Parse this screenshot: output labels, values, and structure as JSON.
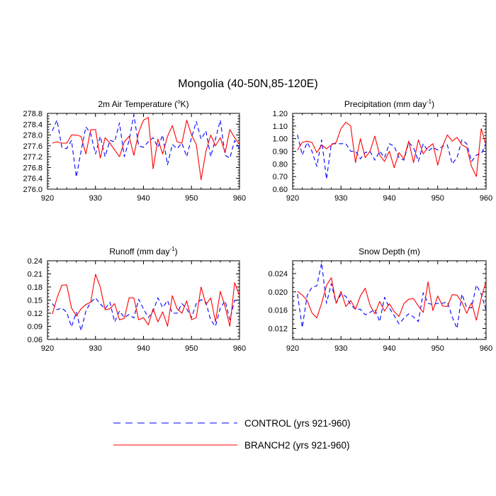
{
  "figure": {
    "title": "Mongolia (40-50N,85-120E)",
    "legend": [
      {
        "label": "CONTROL (yrs 921-960)",
        "color": "#0000ff",
        "dash": "dashed"
      },
      {
        "label": "BRANCH2 (yrs 921-960)",
        "color": "#ff0000",
        "dash": "solid"
      }
    ]
  },
  "chart_data": [
    {
      "type": "line",
      "title": "2m Air Temperature (°K)",
      "title_main": "2m Air Temperature (",
      "title_sup": "o",
      "title_tail": "K)",
      "xlim": [
        920,
        960
      ],
      "ylim": [
        276.0,
        278.8
      ],
      "xticks": [
        920,
        930,
        940,
        950,
        960
      ],
      "xtick_labels": [
        "920",
        "930",
        "940",
        "950",
        "960"
      ],
      "yticks": [
        276.0,
        276.4,
        276.8,
        277.2,
        277.6,
        278.0,
        278.4,
        278.8
      ],
      "ytick_labels": [
        "276.0",
        "276.4",
        "276.8",
        "277.2",
        "277.6",
        "278.0",
        "278.4",
        "278.8"
      ],
      "x": [
        921,
        922,
        923,
        924,
        925,
        926,
        927,
        928,
        929,
        930,
        931,
        932,
        933,
        934,
        935,
        936,
        937,
        938,
        939,
        940,
        941,
        942,
        943,
        944,
        945,
        946,
        947,
        948,
        949,
        950,
        951,
        952,
        953,
        954,
        955,
        956,
        957,
        958,
        959,
        960
      ],
      "series": [
        {
          "name": "CONTROL",
          "values": [
            278.15,
            278.55,
            277.55,
            277.5,
            277.8,
            276.45,
            277.4,
            278.3,
            278.05,
            277.3,
            277.95,
            277.2,
            277.8,
            277.75,
            278.45,
            277.2,
            277.8,
            278.75,
            277.6,
            277.55,
            277.75,
            277.9,
            277.55,
            278.0,
            276.9,
            277.65,
            277.5,
            277.7,
            277.2,
            277.9,
            278.5,
            277.85,
            278.15,
            277.2,
            277.85,
            278.55,
            277.25,
            277.15,
            277.8,
            277.5
          ]
        },
        {
          "name": "BRANCH2",
          "values": [
            277.7,
            277.75,
            277.7,
            277.7,
            278.0,
            278.0,
            277.95,
            277.3,
            278.2,
            278.2,
            277.15,
            277.9,
            277.7,
            277.45,
            277.2,
            277.75,
            277.95,
            277.25,
            278.1,
            278.55,
            278.65,
            276.75,
            277.85,
            277.3,
            277.95,
            278.35,
            277.75,
            277.7,
            278.55,
            278.0,
            277.65,
            276.35,
            277.4,
            278.0,
            277.6,
            277.9,
            277.35,
            278.2,
            277.9,
            277.65
          ]
        }
      ]
    },
    {
      "type": "line",
      "title": "Precipitation (mm day-1)",
      "title_main": "Precipitation (mm day",
      "title_sup": "-1",
      "title_tail": ")",
      "xlim": [
        920,
        960
      ],
      "ylim": [
        0.6,
        1.2
      ],
      "xticks": [
        920,
        930,
        940,
        950,
        960
      ],
      "xtick_labels": [
        "920",
        "930",
        "940",
        "950",
        "960"
      ],
      "yticks": [
        0.6,
        0.7,
        0.8,
        0.9,
        1.0,
        1.1,
        1.2
      ],
      "ytick_labels": [
        "0.60",
        "0.70",
        "0.80",
        "0.90",
        "1.00",
        "1.10",
        "1.20"
      ],
      "x": [
        921,
        922,
        923,
        924,
        925,
        926,
        927,
        928,
        929,
        930,
        931,
        932,
        933,
        934,
        935,
        936,
        937,
        938,
        939,
        940,
        941,
        942,
        943,
        944,
        945,
        946,
        947,
        948,
        949,
        950,
        951,
        952,
        953,
        954,
        955,
        956,
        957,
        958,
        959,
        960
      ],
      "series": [
        {
          "name": "CONTROL",
          "values": [
            1.03,
            0.87,
            0.97,
            0.9,
            0.78,
            0.99,
            0.68,
            0.96,
            0.96,
            0.96,
            0.96,
            0.9,
            0.9,
            0.84,
            0.89,
            0.9,
            0.83,
            0.9,
            0.85,
            0.96,
            0.94,
            0.85,
            0.83,
            0.97,
            0.93,
            0.82,
            0.96,
            0.9,
            0.93,
            0.91,
            0.94,
            0.95,
            0.8,
            0.85,
            0.99,
            0.96,
            0.82,
            0.87,
            0.88,
            0.96
          ]
        },
        {
          "name": "BRANCH2",
          "values": [
            0.91,
            0.97,
            0.98,
            0.97,
            0.89,
            0.95,
            0.92,
            0.95,
            0.97,
            1.08,
            1.13,
            1.1,
            0.81,
            1.0,
            0.85,
            0.9,
            1.02,
            0.87,
            0.82,
            0.9,
            0.77,
            0.89,
            0.84,
            0.98,
            0.81,
            0.99,
            0.88,
            0.93,
            0.96,
            0.79,
            0.94,
            1.03,
            0.98,
            1.01,
            0.95,
            0.93,
            0.78,
            0.7,
            1.08,
            0.95
          ]
        }
      ]
    },
    {
      "type": "line",
      "title": "Runoff (mm day-1)",
      "title_main": "Runoff (mm day",
      "title_sup": "-1",
      "title_tail": ")",
      "xlim": [
        920,
        960
      ],
      "ylim": [
        0.06,
        0.24
      ],
      "xticks": [
        920,
        930,
        940,
        950,
        960
      ],
      "xtick_labels": [
        "920",
        "930",
        "940",
        "950",
        "960"
      ],
      "yticks": [
        0.06,
        0.09,
        0.12,
        0.15,
        0.18,
        0.21,
        0.24
      ],
      "ytick_labels": [
        "0.06",
        "0.09",
        "0.12",
        "0.15",
        "0.18",
        "0.21",
        "0.24"
      ],
      "x": [
        921,
        922,
        923,
        924,
        925,
        926,
        927,
        928,
        929,
        930,
        931,
        932,
        933,
        934,
        935,
        936,
        937,
        938,
        939,
        940,
        941,
        942,
        943,
        944,
        945,
        946,
        947,
        948,
        949,
        950,
        951,
        952,
        953,
        954,
        955,
        956,
        957,
        958,
        959,
        960
      ],
      "series": [
        {
          "name": "CONTROL",
          "values": [
            0.142,
            0.128,
            0.132,
            0.122,
            0.089,
            0.122,
            0.08,
            0.125,
            0.145,
            0.155,
            0.141,
            0.13,
            0.145,
            0.1,
            0.125,
            0.11,
            0.117,
            0.109,
            0.152,
            0.13,
            0.11,
            0.125,
            0.155,
            0.133,
            0.149,
            0.12,
            0.12,
            0.142,
            0.13,
            0.11,
            0.142,
            0.151,
            0.145,
            0.104,
            0.09,
            0.132,
            0.148,
            0.105,
            0.15,
            0.145
          ]
        },
        {
          "name": "BRANCH2",
          "values": [
            0.118,
            0.155,
            0.184,
            0.185,
            0.132,
            0.114,
            0.13,
            0.14,
            0.145,
            0.209,
            0.18,
            0.128,
            0.13,
            0.142,
            0.105,
            0.108,
            0.155,
            0.155,
            0.105,
            0.11,
            0.093,
            0.13,
            0.1,
            0.123,
            0.09,
            0.16,
            0.13,
            0.12,
            0.148,
            0.105,
            0.11,
            0.18,
            0.14,
            0.155,
            0.1,
            0.17,
            0.135,
            0.09,
            0.19,
            0.16
          ]
        }
      ]
    },
    {
      "type": "line",
      "title": "Snow Depth (m)",
      "title_main": "Snow Depth (m)",
      "title_sup": "",
      "title_tail": "",
      "xlim": [
        920,
        960
      ],
      "ylim": [
        0.0096,
        0.0268
      ],
      "xticks": [
        920,
        930,
        940,
        950,
        960
      ],
      "xtick_labels": [
        "920",
        "930",
        "940",
        "950",
        "960"
      ],
      "yticks": [
        0.012,
        0.016,
        0.02,
        0.024
      ],
      "ytick_labels": [
        "0.012",
        "0.016",
        "0.020",
        "0.024"
      ],
      "x": [
        921,
        922,
        923,
        924,
        925,
        926,
        927,
        928,
        929,
        930,
        931,
        932,
        933,
        934,
        935,
        936,
        937,
        938,
        939,
        940,
        941,
        942,
        943,
        944,
        945,
        946,
        947,
        948,
        949,
        950,
        951,
        952,
        953,
        954,
        955,
        956,
        957,
        958,
        959,
        960
      ],
      "series": [
        {
          "name": "CONTROL",
          "values": [
            0.0195,
            0.0122,
            0.0192,
            0.021,
            0.0213,
            0.0263,
            0.0175,
            0.0218,
            0.0175,
            0.0195,
            0.019,
            0.0172,
            0.0162,
            0.0162,
            0.015,
            0.0155,
            0.0162,
            0.0135,
            0.0188,
            0.0165,
            0.0148,
            0.013,
            0.0142,
            0.0152,
            0.0145,
            0.0135,
            0.0198,
            0.0175,
            0.0172,
            0.0175,
            0.0175,
            0.0178,
            0.0145,
            0.012,
            0.0195,
            0.0165,
            0.0165,
            0.0215,
            0.0195,
            0.016
          ]
        },
        {
          "name": "BRANCH2",
          "values": [
            0.0201,
            0.0193,
            0.0181,
            0.0154,
            0.0143,
            0.0175,
            0.0214,
            0.0231,
            0.0175,
            0.0201,
            0.0168,
            0.0181,
            0.0162,
            0.0191,
            0.0208,
            0.0171,
            0.0152,
            0.0179,
            0.0158,
            0.0174,
            0.0157,
            0.0146,
            0.0174,
            0.0184,
            0.0185,
            0.0169,
            0.0155,
            0.0222,
            0.0159,
            0.0191,
            0.0169,
            0.0168,
            0.0194,
            0.0193,
            0.0177,
            0.0153,
            0.0176,
            0.0138,
            0.0187,
            0.0223
          ]
        }
      ]
    }
  ]
}
